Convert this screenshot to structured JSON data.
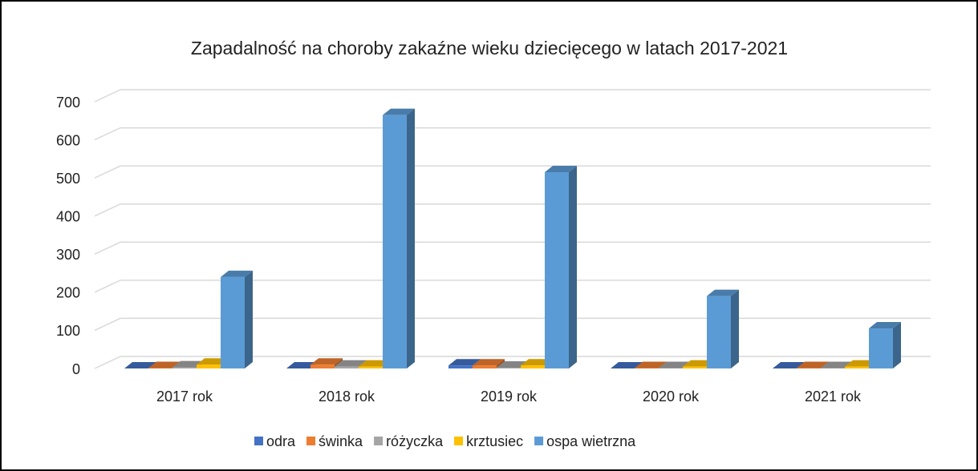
{
  "chart_data": {
    "type": "bar3d",
    "title": "Zapadalność na choroby zakaźne wieku dziecięcego w latach 2017-2021",
    "categories": [
      "2017 rok",
      "2018 rok",
      "2019 rok",
      "2020 rok",
      "2021 rok"
    ],
    "series": [
      {
        "name": "odra",
        "color": "#4472c4",
        "values": [
          0,
          0,
          8,
          0,
          0
        ]
      },
      {
        "name": "świnka",
        "color": "#ed7d31",
        "values": [
          1,
          10,
          8,
          1,
          1
        ]
      },
      {
        "name": "różyczka",
        "color": "#a5a5a5",
        "values": [
          3,
          5,
          2,
          1,
          1
        ]
      },
      {
        "name": "krztusiec",
        "color": "#ffc000",
        "values": [
          10,
          5,
          8,
          5,
          5
        ]
      },
      {
        "name": "ospa wietrzna",
        "color": "#5b9bd5",
        "values": [
          240,
          665,
          515,
          190,
          105
        ]
      }
    ],
    "ylim": [
      0,
      700
    ],
    "yticks": [
      0,
      100,
      200,
      300,
      400,
      500,
      600,
      700
    ],
    "grid": true,
    "legend": "bottom"
  }
}
